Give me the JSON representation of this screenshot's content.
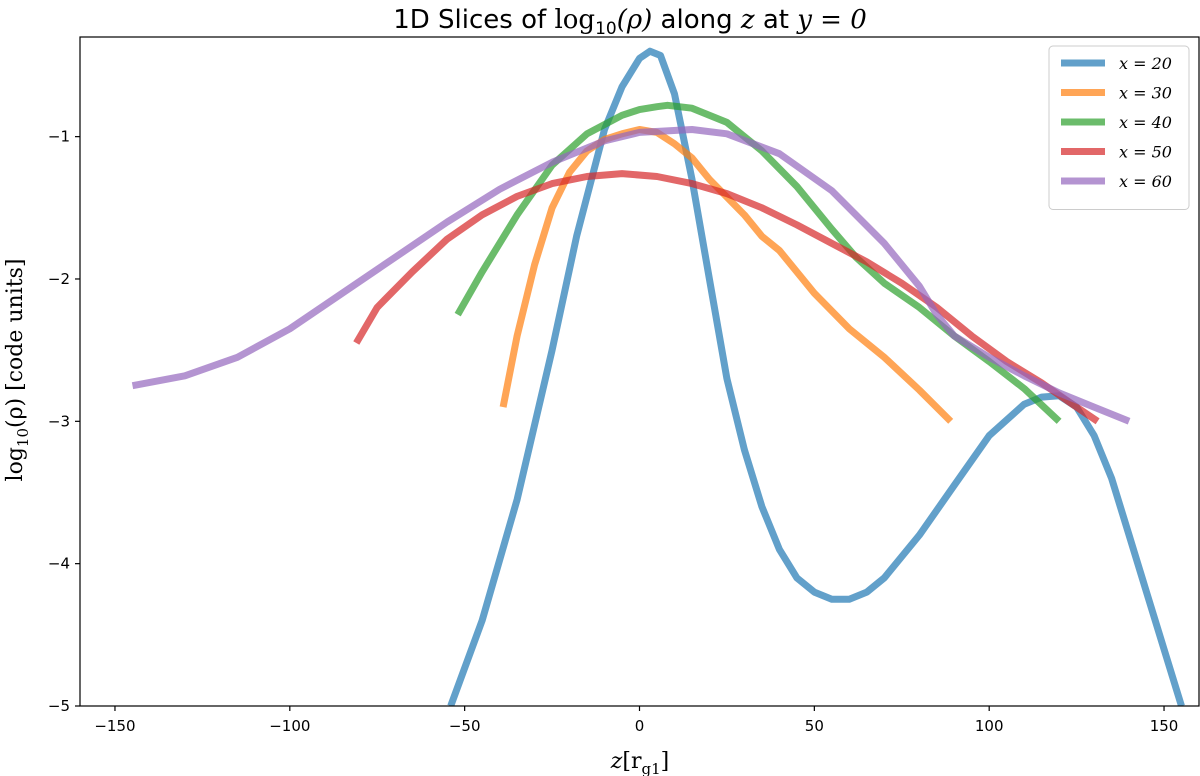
{
  "chart_data": {
    "type": "line",
    "title": "1D Slices of log10(ρ) along z at y = 0",
    "title_parts": {
      "prefix": "1D Slices of ",
      "func": "log",
      "sub": "10",
      "arg": "(ρ)",
      "along": " along ",
      "var": "z",
      "at": " at ",
      "eq": "y = 0"
    },
    "xlabel": "z[rg1]",
    "xlabel_parts": {
      "var": "z",
      "open": "[r",
      "sub": "g1",
      "close": "]"
    },
    "ylabel": "log10(ρ) [code units]",
    "ylabel_parts": {
      "func": "log",
      "sub": "10",
      "rest": "(ρ) [code units]"
    },
    "xlim": [
      -160,
      160
    ],
    "ylim": [
      -5,
      -0.3
    ],
    "xticks": [
      -150,
      -100,
      -50,
      0,
      50,
      100,
      150
    ],
    "xtick_labels": [
      "−150",
      "−100",
      "−50",
      "0",
      "50",
      "100",
      "150"
    ],
    "yticks": [
      -5,
      -4,
      -3,
      -2,
      -1
    ],
    "ytick_labels": [
      "−5",
      "−4",
      "−3",
      "−2",
      "−1"
    ],
    "grid": false,
    "legend_position": "top-right",
    "series": [
      {
        "name": "x = 20",
        "color": "#1f77b4",
        "x": [
          -54,
          -45,
          -35,
          -25,
          -18,
          -10,
          -5,
          0,
          3,
          6,
          10,
          15,
          20,
          25,
          30,
          35,
          40,
          45,
          50,
          55,
          60,
          65,
          70,
          80,
          90,
          100,
          110,
          115,
          120,
          125,
          130,
          135,
          140,
          145,
          150,
          155
        ],
        "y": [
          -5.0,
          -4.4,
          -3.55,
          -2.5,
          -1.7,
          -0.95,
          -0.65,
          -0.45,
          -0.4,
          -0.43,
          -0.7,
          -1.3,
          -2.0,
          -2.7,
          -3.2,
          -3.6,
          -3.9,
          -4.1,
          -4.2,
          -4.25,
          -4.25,
          -4.2,
          -4.1,
          -3.8,
          -3.45,
          -3.1,
          -2.88,
          -2.83,
          -2.82,
          -2.9,
          -3.1,
          -3.4,
          -3.8,
          -4.2,
          -4.6,
          -5.0
        ]
      },
      {
        "name": "x = 30",
        "color": "#ff7f0e",
        "x": [
          -39,
          -35,
          -30,
          -25,
          -20,
          -15,
          -10,
          -5,
          0,
          5,
          10,
          15,
          20,
          30,
          35,
          40,
          50,
          60,
          70,
          80,
          89
        ],
        "y": [
          -2.9,
          -2.4,
          -1.9,
          -1.5,
          -1.25,
          -1.1,
          -1.02,
          -0.98,
          -0.95,
          -0.97,
          -1.05,
          -1.15,
          -1.3,
          -1.55,
          -1.7,
          -1.8,
          -2.1,
          -2.35,
          -2.55,
          -2.78,
          -3.0
        ]
      },
      {
        "name": "x = 40",
        "color": "#2ca02c",
        "x": [
          -52,
          -45,
          -35,
          -25,
          -15,
          -5,
          0,
          5,
          8,
          15,
          25,
          35,
          45,
          55,
          62,
          70,
          80,
          90,
          100,
          110,
          120
        ],
        "y": [
          -2.25,
          -1.95,
          -1.55,
          -1.2,
          -0.98,
          -0.85,
          -0.81,
          -0.79,
          -0.78,
          -0.8,
          -0.9,
          -1.1,
          -1.35,
          -1.65,
          -1.85,
          -2.03,
          -2.2,
          -2.4,
          -2.58,
          -2.77,
          -3.0
        ]
      },
      {
        "name": "x = 50",
        "color": "#d62728",
        "x": [
          -81,
          -75,
          -65,
          -55,
          -45,
          -35,
          -25,
          -15,
          -5,
          5,
          15,
          25,
          35,
          45,
          55,
          65,
          75,
          85,
          95,
          105,
          115,
          125,
          131
        ],
        "y": [
          -2.45,
          -2.2,
          -1.95,
          -1.72,
          -1.55,
          -1.42,
          -1.33,
          -1.28,
          -1.26,
          -1.28,
          -1.33,
          -1.4,
          -1.5,
          -1.62,
          -1.75,
          -1.88,
          -2.03,
          -2.2,
          -2.4,
          -2.58,
          -2.73,
          -2.9,
          -3.0
        ]
      },
      {
        "name": "x = 60",
        "color": "#9467bd",
        "x": [
          -145,
          -130,
          -115,
          -100,
          -85,
          -70,
          -55,
          -40,
          -25,
          -10,
          0,
          15,
          25,
          40,
          55,
          70,
          80,
          85,
          90,
          100,
          110,
          120,
          130,
          140
        ],
        "y": [
          -2.75,
          -2.68,
          -2.55,
          -2.35,
          -2.1,
          -1.85,
          -1.6,
          -1.37,
          -1.18,
          -1.03,
          -0.97,
          -0.95,
          -0.98,
          -1.12,
          -1.38,
          -1.75,
          -2.05,
          -2.25,
          -2.4,
          -2.55,
          -2.68,
          -2.8,
          -2.9,
          -3.0
        ]
      }
    ]
  }
}
